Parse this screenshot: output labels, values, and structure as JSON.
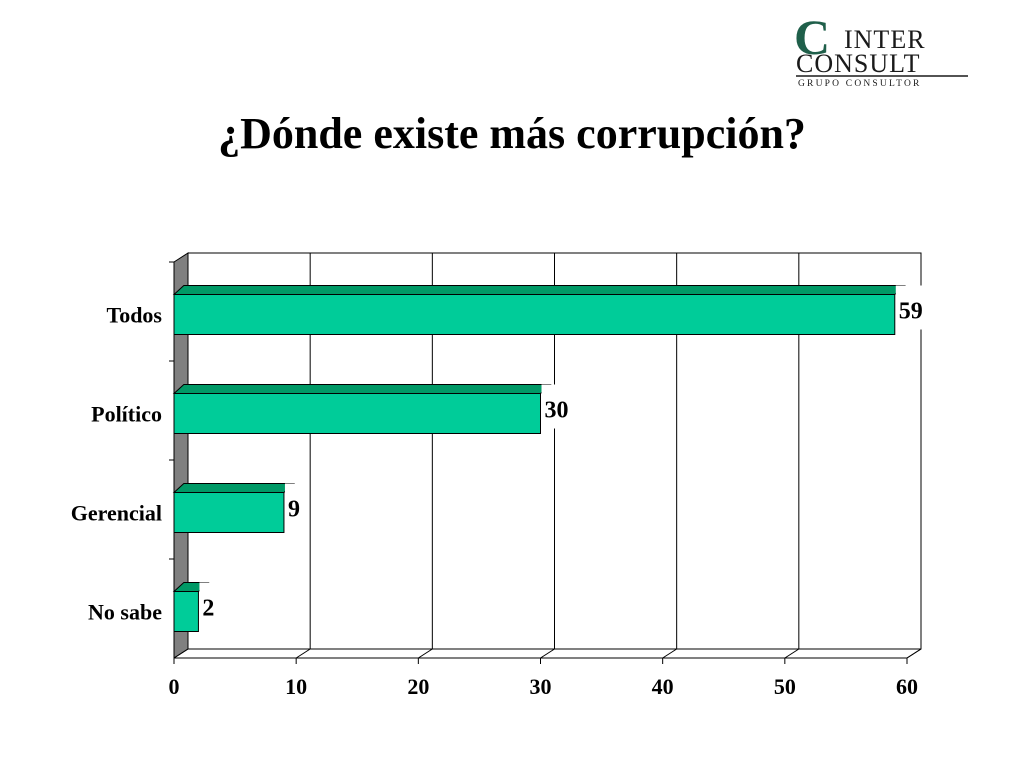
{
  "header": {
    "title": "¿Dónde existe más corrupción?",
    "logo": {
      "line1": "INTER",
      "line2": "CONSULT",
      "line3": "GRUPO CONSULTOR",
      "initial": "C"
    }
  },
  "colors": {
    "bar": "#00CC99",
    "bar_top": "#009966",
    "wall": "#808080",
    "grid": "#000000"
  },
  "chart_data": {
    "type": "bar",
    "orientation": "horizontal",
    "title": "¿Dónde existe más corrupción?",
    "categories": [
      "Todos",
      "Político",
      "Gerencial",
      "No sabe"
    ],
    "values": [
      59,
      30,
      9,
      2
    ],
    "data_labels": [
      "59",
      "30",
      "9",
      "2"
    ],
    "xlabel": "",
    "ylabel": "",
    "xlim": [
      0,
      60
    ],
    "xticks": [
      0,
      10,
      20,
      30,
      40,
      50,
      60
    ],
    "grid": true,
    "legend": "none",
    "style": "3d"
  }
}
